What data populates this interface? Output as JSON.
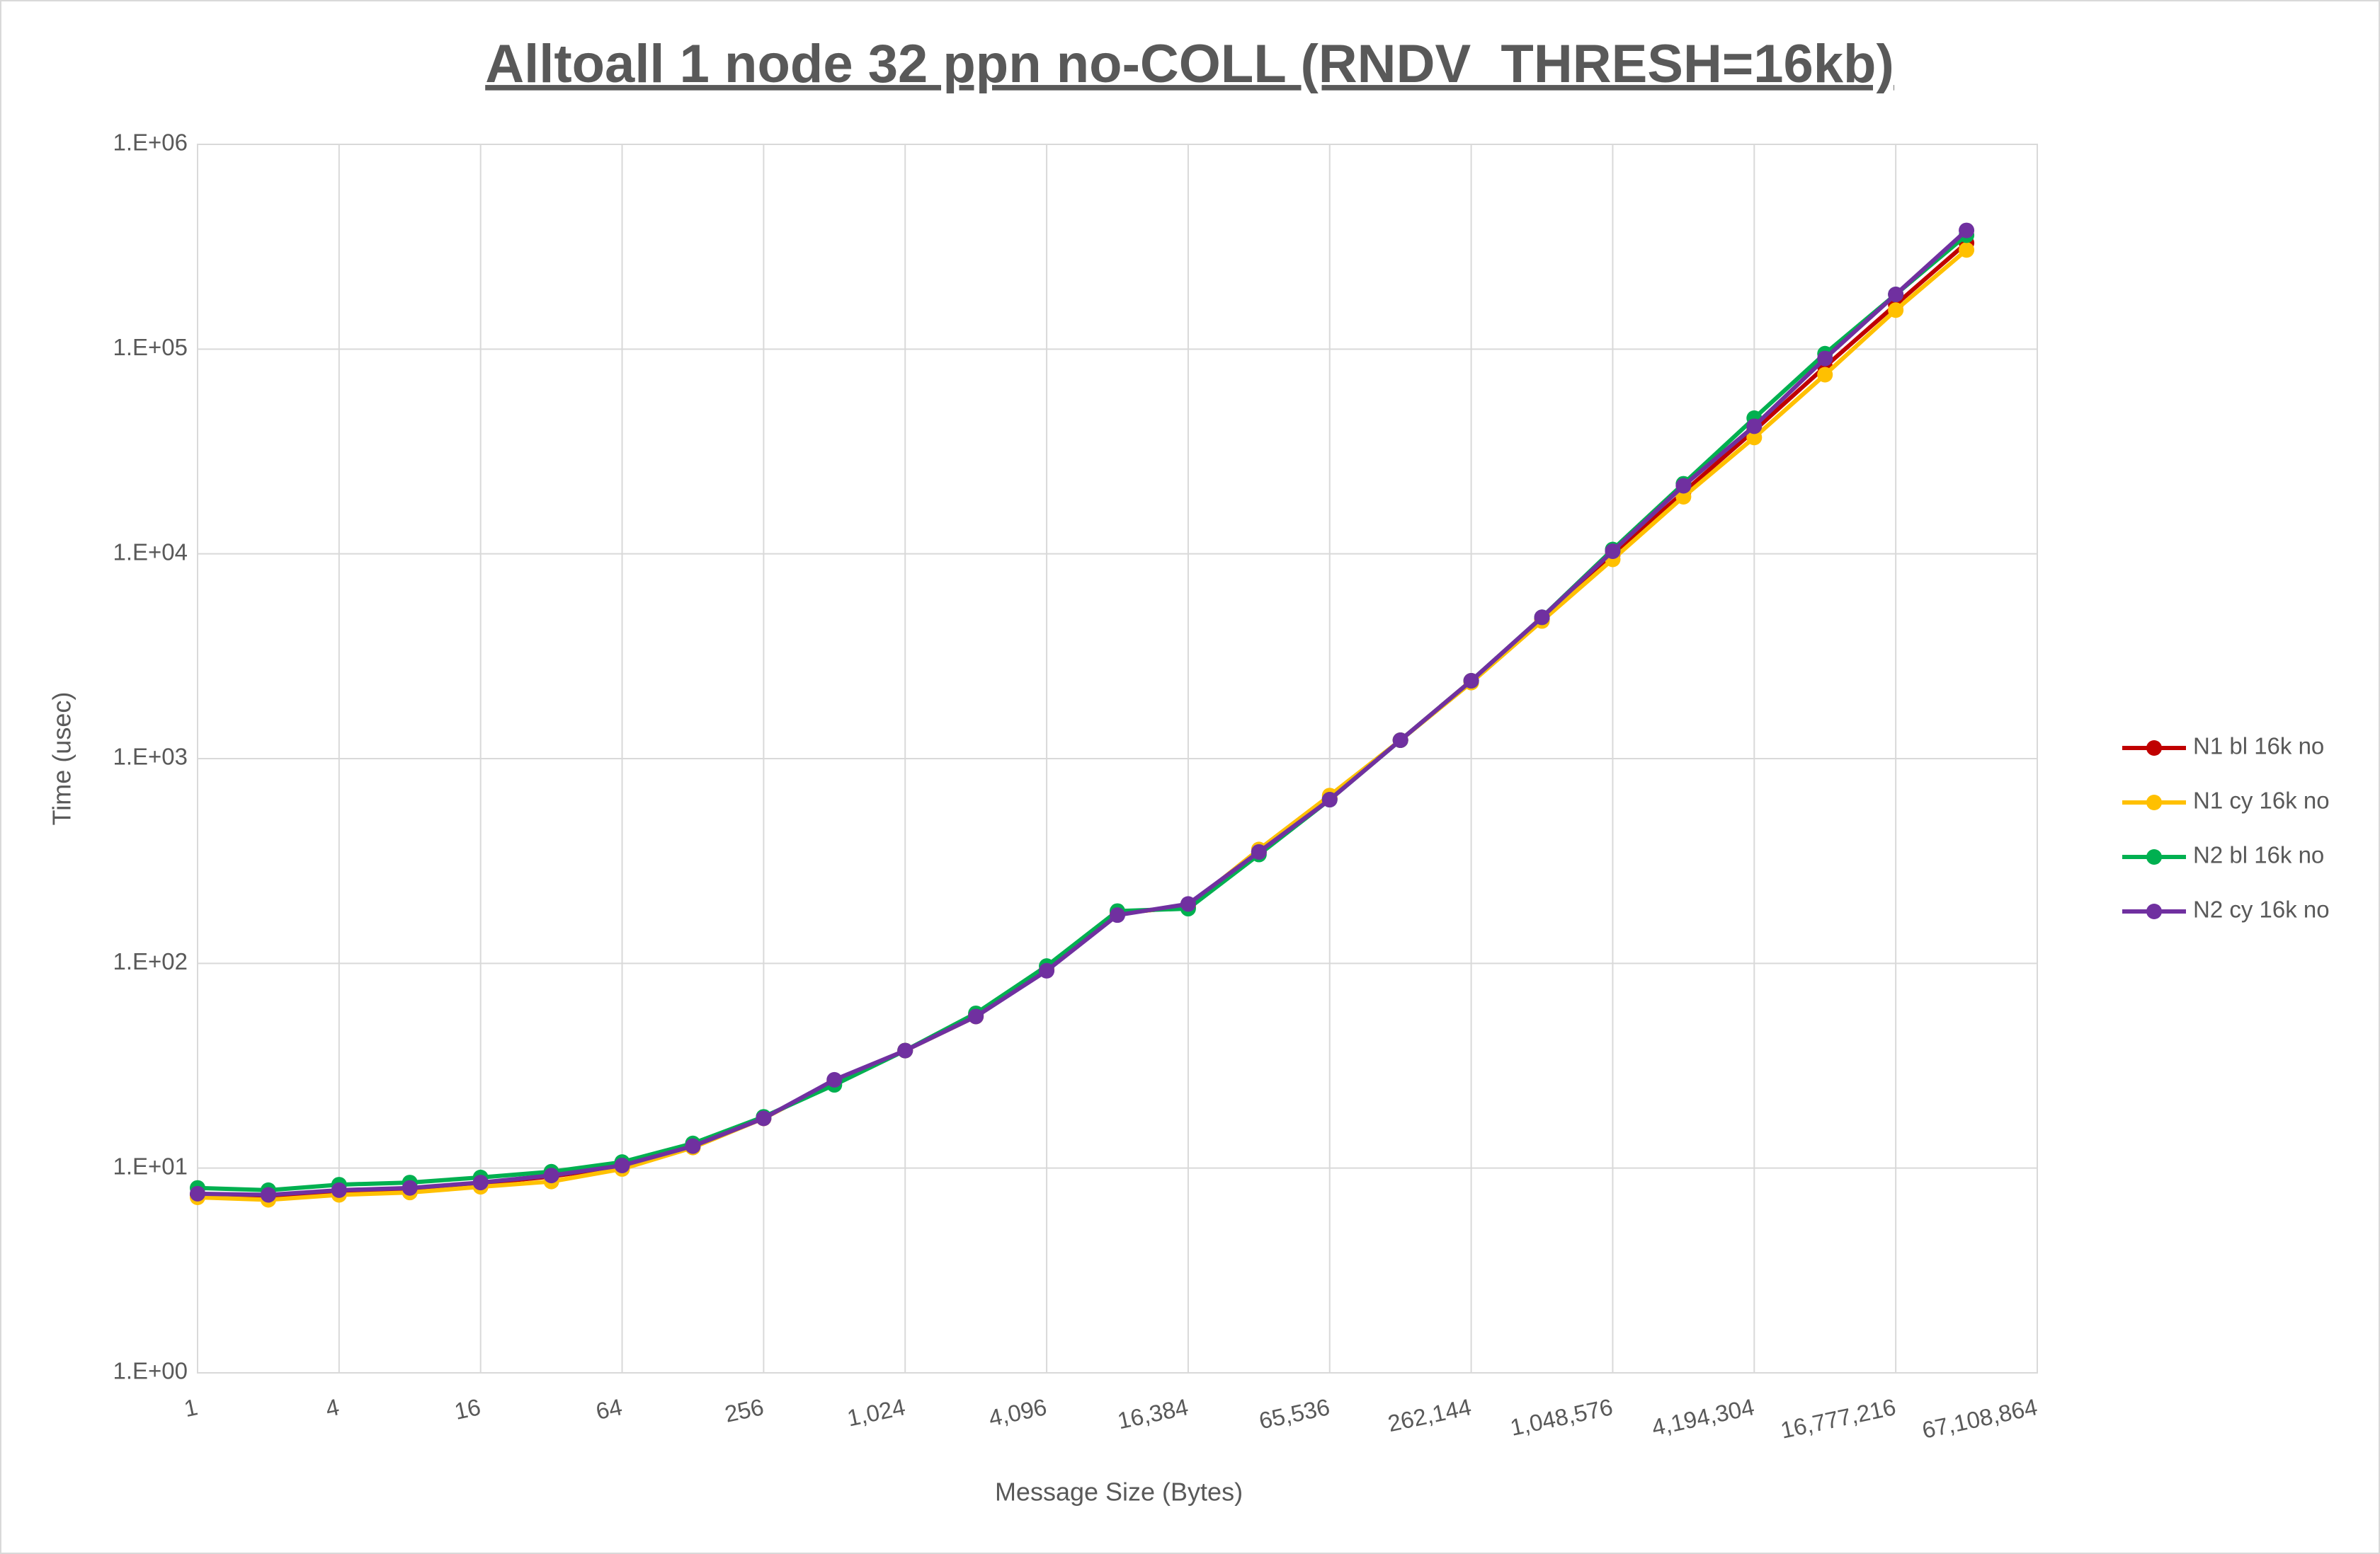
{
  "chart_data": {
    "type": "line",
    "title": "Alltoall 1 node 32 ppn no-COLL (RNDV_THRESH=16kb)",
    "x_label": "Message Size (Bytes)",
    "y_label": "Time (usec)",
    "x": [
      1,
      2,
      4,
      8,
      16,
      32,
      64,
      128,
      256,
      512,
      1024,
      2048,
      4096,
      8192,
      16384,
      32768,
      65536,
      131072,
      262144,
      524288,
      1048576,
      2097152,
      4194304,
      8388608,
      16777216,
      33554432
    ],
    "series": [
      {
        "name": "N1 bl 16k no",
        "color": "#c00000",
        "values": [
          7.4,
          7.3,
          7.7,
          7.9,
          8.4,
          9.1,
          10.2,
          12.8,
          17.5,
          26.5,
          37.5,
          56,
          93,
          175,
          190,
          350,
          640,
          1230,
          2400,
          4800,
          9900,
          20000,
          40000,
          82000,
          165000,
          330000
        ]
      },
      {
        "name": "N1 cy 16k no",
        "color": "#ffc000",
        "values": [
          7.2,
          7.0,
          7.4,
          7.6,
          8.1,
          8.6,
          9.9,
          12.6,
          17.5,
          26.5,
          37.5,
          55,
          93,
          175,
          190,
          360,
          660,
          1230,
          2350,
          4700,
          9400,
          19000,
          37000,
          75000,
          155000,
          305000
        ]
      },
      {
        "name": "N2 bl 16k no",
        "color": "#00b050",
        "values": [
          8.0,
          7.8,
          8.3,
          8.5,
          9.0,
          9.6,
          10.7,
          13.2,
          17.8,
          25.5,
          37.5,
          57,
          97,
          180,
          185,
          340,
          630,
          1230,
          2400,
          4900,
          10500,
          22000,
          46000,
          95000,
          185000,
          360000
        ]
      },
      {
        "name": "N2 cy 16k no",
        "color": "#7030a0",
        "values": [
          7.5,
          7.4,
          7.8,
          8.0,
          8.5,
          9.2,
          10.3,
          12.8,
          17.5,
          27,
          37.5,
          55,
          92,
          172,
          195,
          350,
          630,
          1230,
          2400,
          4900,
          10300,
          21500,
          42000,
          90000,
          185000,
          380000
        ]
      }
    ],
    "xscale": "log",
    "yscale": "log",
    "xlim": [
      1,
      67108864
    ],
    "ylim": [
      1,
      1000000
    ],
    "xticks": [
      1,
      4,
      16,
      64,
      256,
      {
        "value": 1024,
        "label": "1,024"
      },
      {
        "value": 4096,
        "label": "4,096"
      },
      {
        "value": 16384,
        "label": "16,384"
      },
      {
        "value": 65536,
        "label": "65,536"
      },
      {
        "value": 262144,
        "label": "262,144"
      },
      {
        "value": 1048576,
        "label": "1,048,576"
      },
      {
        "value": 4194304,
        "label": "4,194,304"
      },
      {
        "value": 16777216,
        "label": "16,777,216"
      },
      {
        "value": 67108864,
        "label": "67,108,864"
      }
    ],
    "yticks": [
      {
        "value": 1,
        "label": "1.E+00"
      },
      {
        "value": 10,
        "label": "1.E+01"
      },
      {
        "value": 100,
        "label": "1.E+02"
      },
      {
        "value": 1000,
        "label": "1.E+03"
      },
      {
        "value": 10000,
        "label": "1.E+04"
      },
      {
        "value": 100000,
        "label": "1.E+05"
      },
      {
        "value": 1000000,
        "label": "1.E+06"
      }
    ],
    "grid": true,
    "legend": "right"
  }
}
